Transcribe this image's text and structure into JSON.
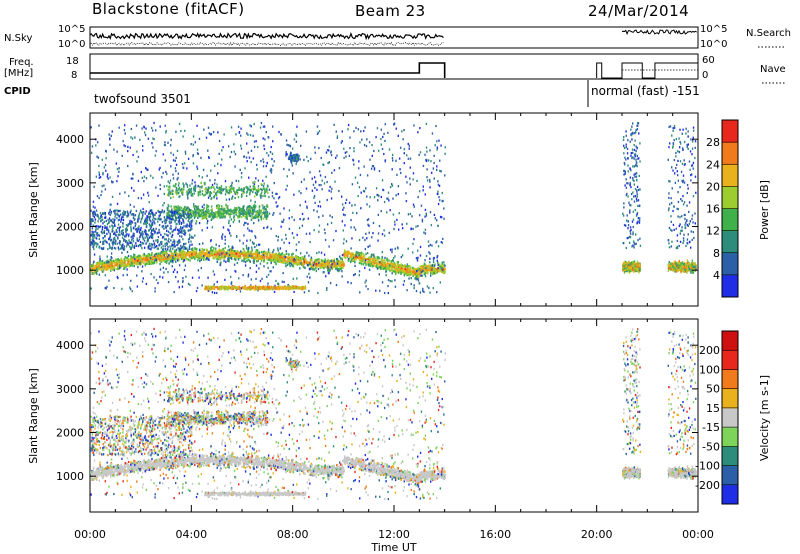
{
  "header": {
    "station": "Blackstone (fitACF)",
    "beam": "Beam 23",
    "date": "24/Mar/2014"
  },
  "panels": {
    "nsky_label": "N.Sky",
    "nsearch_label": "N.Search",
    "nsky_ticks": [
      "10^5",
      "10^0"
    ],
    "freq_label_1": "Freq.",
    "freq_label_2": "[MHz]",
    "freq_ticks": [
      "18",
      "8"
    ],
    "nave_label": "Nave",
    "nave_ticks": [
      "60",
      "0"
    ],
    "cpid_label": "CPID",
    "cpid_modes": [
      {
        "text": "twofsound 3501",
        "start": 0.0
      },
      {
        "text": "normal (fast) -151",
        "start": 19.95
      }
    ]
  },
  "chart_data": [
    {
      "type": "heatmap",
      "title": "",
      "xlabel": "Time UT",
      "ylabel": "Slant Range [km]",
      "xlim": [
        0,
        24
      ],
      "ylim": [
        180,
        4600
      ],
      "x_ticks": [
        "00:00",
        "04:00",
        "08:00",
        "12:00",
        "16:00",
        "20:00",
        "00:00"
      ],
      "y_ticks": [
        1000,
        2000,
        3000,
        4000
      ],
      "colorbar": {
        "label": "Power [dB]",
        "ticks": [
          "4",
          "8",
          "12",
          "16",
          "20",
          "24",
          "28"
        ],
        "colors": [
          "#1f2ee6",
          "#2b5fa8",
          "#2e8c7c",
          "#3fb04a",
          "#9ccc2f",
          "#e9b21d",
          "#f07a1c",
          "#e8281d"
        ]
      },
      "features": [
        {
          "name": "main band",
          "t_start": 0,
          "t_end": 14,
          "range_km": [
            950,
            1450
          ],
          "power_db": [
            12,
            28
          ]
        },
        {
          "name": "upper echoes",
          "t_start": 3,
          "t_end": 7,
          "range_km": [
            2300,
            3000
          ],
          "power_db": [
            4,
            16
          ]
        },
        {
          "name": "lower echoes",
          "t_start": 4,
          "t_end": 9,
          "range_km": [
            550,
            700
          ],
          "power_db": [
            8,
            24
          ]
        },
        {
          "name": "late echoes 1",
          "t_start": 21,
          "t_end": 21.7,
          "range_km": [
            950,
            1500
          ],
          "power_db": [
            8,
            24
          ]
        },
        {
          "name": "late echoes 2",
          "t_start": 22.8,
          "t_end": 23.9,
          "range_km": [
            950,
            1500
          ],
          "power_db": [
            8,
            24
          ]
        }
      ]
    },
    {
      "type": "heatmap",
      "title": "",
      "xlabel": "Time UT",
      "ylabel": "Slant Range [km]",
      "xlim": [
        0,
        24
      ],
      "ylim": [
        180,
        4600
      ],
      "x_ticks": [
        "00:00",
        "04:00",
        "08:00",
        "12:00",
        "16:00",
        "20:00",
        "00:00"
      ],
      "y_ticks": [
        1000,
        2000,
        3000,
        4000
      ],
      "colorbar": {
        "label": "Velocity [m s-1]",
        "ticks": [
          "200",
          "100",
          "50",
          "15",
          "-15",
          "-50",
          "-100",
          "-200"
        ],
        "colors": [
          "#1f2ee6",
          "#2b5fa8",
          "#2e8c7c",
          "#7ed35a",
          "#c8c8c8",
          "#e9b21d",
          "#f07a1c",
          "#e8281d",
          "#cf1010"
        ]
      },
      "features": [
        {
          "name": "ground scatter band",
          "t_start": 0,
          "t_end": 14,
          "range_km": [
            950,
            1450
          ],
          "velocity_ms": [
            -15,
            15
          ]
        },
        {
          "name": "upper echoes",
          "t_start": 3,
          "t_end": 7,
          "range_km": [
            2300,
            3000
          ],
          "velocity_ms": [
            -100,
            50
          ]
        },
        {
          "name": "lower echoes",
          "t_start": 4,
          "t_end": 9,
          "range_km": [
            550,
            700
          ],
          "velocity_ms": [
            -15,
            15
          ]
        }
      ]
    }
  ]
}
